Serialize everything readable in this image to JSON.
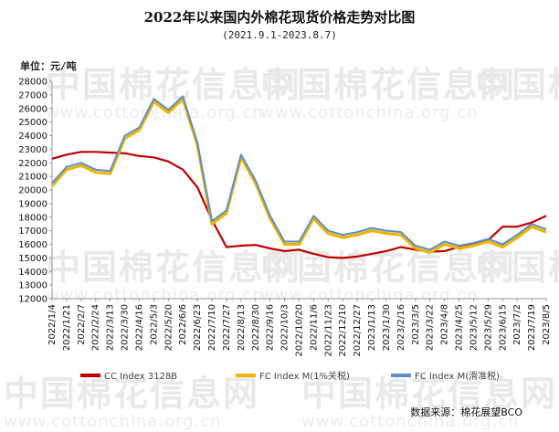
{
  "chart_data": {
    "type": "line",
    "title": "2022年以来国内外棉花现货价格走势对比图",
    "subtitle": "(2021.9.1-2023.8.7)",
    "unit_label": "单位：元/吨",
    "source": "数据来源：棉花展望BCO",
    "ylim": [
      12000,
      28000
    ],
    "y_ticks": [
      12000,
      13000,
      14000,
      15000,
      16000,
      17000,
      18000,
      19000,
      20000,
      21000,
      22000,
      23000,
      24000,
      25000,
      26000,
      27000,
      28000
    ],
    "x_ticks": [
      "2022/1/4",
      "2022/1/21",
      "2022/2/7",
      "2022/2/24",
      "2022/3/13",
      "2022/3/30",
      "2022/4/16",
      "2022/5/3",
      "2022/5/20",
      "2022/6/6",
      "2022/6/23",
      "2022/7/10",
      "2022/7/27",
      "2022/8/13",
      "2022/8/30",
      "2022/9/16",
      "2022/10/3",
      "2022/10/20",
      "2022/11/6",
      "2022/11/23",
      "2022/12/10",
      "2022/12/27",
      "2023/1/13",
      "2023/1/30",
      "2023/2/16",
      "2023/3/5",
      "2023/3/22",
      "2023/4/8",
      "2023/4/25",
      "2023/5/12",
      "2023/5/29",
      "2023/6/15",
      "2023/7/2",
      "2023/7/19",
      "2023/8/5"
    ],
    "grid": false,
    "legend_position": "bottom",
    "series": [
      {
        "name": "CC Index 3128B",
        "color": "#c00000",
        "points": [
          [
            "2022/1/4",
            22300
          ],
          [
            "2022/1/21",
            22600
          ],
          [
            "2022/2/7",
            22800
          ],
          [
            "2022/2/24",
            22800
          ],
          [
            "2022/3/13",
            22750
          ],
          [
            "2022/3/30",
            22700
          ],
          [
            "2022/4/16",
            22500
          ],
          [
            "2022/5/3",
            22400
          ],
          [
            "2022/5/20",
            22100
          ],
          [
            "2022/6/6",
            21500
          ],
          [
            "2022/6/23",
            20200
          ],
          [
            "2022/7/10",
            17800
          ],
          [
            "2022/7/27",
            15800
          ],
          [
            "2022/8/13",
            15900
          ],
          [
            "2022/8/30",
            15950
          ],
          [
            "2022/9/16",
            15700
          ],
          [
            "2022/10/3",
            15500
          ],
          [
            "2022/10/20",
            15600
          ],
          [
            "2022/11/6",
            15300
          ],
          [
            "2022/11/23",
            15050
          ],
          [
            "2022/12/10",
            15000
          ],
          [
            "2022/12/27",
            15100
          ],
          [
            "2023/1/13",
            15300
          ],
          [
            "2023/1/30",
            15500
          ],
          [
            "2023/2/16",
            15800
          ],
          [
            "2023/3/5",
            15600
          ],
          [
            "2023/3/22",
            15450
          ],
          [
            "2023/4/8",
            15500
          ],
          [
            "2023/4/25",
            15800
          ],
          [
            "2023/5/12",
            16000
          ],
          [
            "2023/5/29",
            16300
          ],
          [
            "2023/6/15",
            17300
          ],
          [
            "2023/7/2",
            17300
          ],
          [
            "2023/7/19",
            17600
          ],
          [
            "2023/8/5",
            18100
          ]
        ]
      },
      {
        "name": "FC Index M(1%关税)",
        "color": "#f0b400",
        "points": [
          [
            "2022/1/4",
            20300
          ],
          [
            "2022/1/21",
            21500
          ],
          [
            "2022/2/7",
            21800
          ],
          [
            "2022/2/24",
            21300
          ],
          [
            "2022/3/13",
            21200
          ],
          [
            "2022/3/30",
            23800
          ],
          [
            "2022/4/16",
            24400
          ],
          [
            "2022/5/3",
            26500
          ],
          [
            "2022/5/20",
            25700
          ],
          [
            "2022/6/6",
            26700
          ],
          [
            "2022/6/23",
            23300
          ],
          [
            "2022/7/10",
            17500
          ],
          [
            "2022/7/27",
            18300
          ],
          [
            "2022/8/13",
            22400
          ],
          [
            "2022/8/30",
            20500
          ],
          [
            "2022/9/16",
            17900
          ],
          [
            "2022/10/3",
            16000
          ],
          [
            "2022/10/20",
            16000
          ],
          [
            "2022/11/6",
            17900
          ],
          [
            "2022/11/23",
            16800
          ],
          [
            "2022/12/10",
            16500
          ],
          [
            "2022/12/27",
            16700
          ],
          [
            "2023/1/13",
            17000
          ],
          [
            "2023/1/30",
            16800
          ],
          [
            "2023/2/16",
            16700
          ],
          [
            "2023/3/5",
            15700
          ],
          [
            "2023/3/22",
            15400
          ],
          [
            "2023/4/8",
            16000
          ],
          [
            "2023/4/25",
            15700
          ],
          [
            "2023/5/12",
            15900
          ],
          [
            "2023/5/29",
            16200
          ],
          [
            "2023/6/15",
            15800
          ],
          [
            "2023/7/2",
            16500
          ],
          [
            "2023/7/19",
            17300
          ],
          [
            "2023/8/5",
            16900
          ]
        ]
      },
      {
        "name": "FC Index M(滑准税)",
        "color": "#5b8fc9",
        "points": [
          [
            "2022/1/4",
            20500
          ],
          [
            "2022/1/21",
            21700
          ],
          [
            "2022/2/7",
            22000
          ],
          [
            "2022/2/24",
            21500
          ],
          [
            "2022/3/13",
            21400
          ],
          [
            "2022/3/30",
            24000
          ],
          [
            "2022/4/16",
            24600
          ],
          [
            "2022/5/3",
            26700
          ],
          [
            "2022/5/20",
            25900
          ],
          [
            "2022/6/6",
            26900
          ],
          [
            "2022/6/23",
            23500
          ],
          [
            "2022/7/10",
            17700
          ],
          [
            "2022/7/27",
            18500
          ],
          [
            "2022/8/13",
            22600
          ],
          [
            "2022/8/30",
            20700
          ],
          [
            "2022/9/16",
            18100
          ],
          [
            "2022/10/3",
            16200
          ],
          [
            "2022/10/20",
            16200
          ],
          [
            "2022/11/6",
            18100
          ],
          [
            "2022/11/23",
            17000
          ],
          [
            "2022/12/10",
            16700
          ],
          [
            "2022/12/27",
            16900
          ],
          [
            "2023/1/13",
            17200
          ],
          [
            "2023/1/30",
            17000
          ],
          [
            "2023/2/16",
            16900
          ],
          [
            "2023/3/5",
            15900
          ],
          [
            "2023/3/22",
            15600
          ],
          [
            "2023/4/8",
            16200
          ],
          [
            "2023/4/25",
            15900
          ],
          [
            "2023/5/12",
            16100
          ],
          [
            "2023/5/29",
            16400
          ],
          [
            "2023/6/15",
            16000
          ],
          [
            "2023/7/2",
            16700
          ],
          [
            "2023/7/19",
            17500
          ],
          [
            "2023/8/5",
            17100
          ]
        ]
      }
    ]
  },
  "watermark": {
    "brand": "中国棉花信息网",
    "site": "www.cottonchina.org.cn"
  }
}
